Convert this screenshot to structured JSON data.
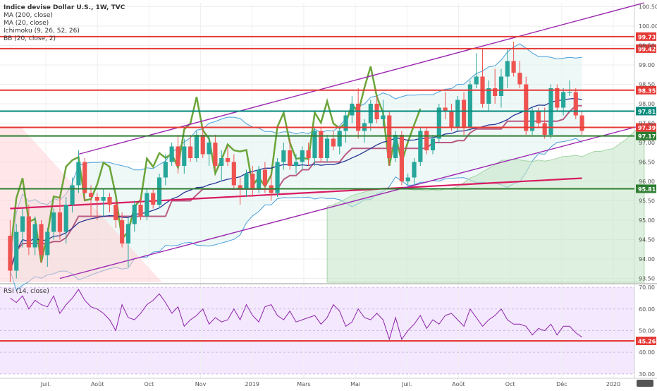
{
  "legend": {
    "title": "Indice devise Dollar U.S., 1W, TVC",
    "items": [
      "MA (200, close)",
      "MA (20, close)",
      "Ichimoku (9, 26, 52, 26)",
      "BB (20, close, 2)"
    ],
    "rsi": "RSI (14, close)"
  },
  "chart_data": [
    {
      "type": "candlestick",
      "y_axis_position": "right",
      "ylim": [
        93.4,
        100.6
      ],
      "y_ticks": [
        93.5,
        94.0,
        94.5,
        95.0,
        95.5,
        96.0,
        96.5,
        97.0,
        97.5,
        98.0,
        98.5,
        99.0,
        99.5,
        100.0,
        100.5
      ],
      "y_tick_labels": [
        "93.50",
        "94.00",
        "94.50",
        "95.00",
        "95.50",
        "96.00",
        "96.50",
        "97.00",
        "97.50",
        "98.00",
        "98.50",
        "99.00",
        "99.50",
        "100.00",
        "100.50"
      ],
      "x_labels": [
        "Juil.",
        "Août",
        "Oct",
        "Nov",
        "2019",
        "Mars",
        "Mai",
        "Juil.",
        "Août",
        "Oct",
        "Déc",
        "2020"
      ],
      "candles": [
        {
          "o": 94.6,
          "h": 95.0,
          "l": 93.4,
          "c": 93.7
        },
        {
          "o": 93.7,
          "h": 94.9,
          "l": 93.5,
          "c": 94.7
        },
        {
          "o": 94.7,
          "h": 95.3,
          "l": 94.3,
          "c": 95.1
        },
        {
          "o": 95.1,
          "h": 95.4,
          "l": 94.1,
          "c": 94.3
        },
        {
          "o": 94.3,
          "h": 95.1,
          "l": 94.1,
          "c": 94.9
        },
        {
          "o": 94.9,
          "h": 95.0,
          "l": 93.9,
          "c": 94.1
        },
        {
          "o": 94.1,
          "h": 94.8,
          "l": 93.8,
          "c": 94.7
        },
        {
          "o": 94.7,
          "h": 95.3,
          "l": 94.5,
          "c": 95.2
        },
        {
          "o": 95.2,
          "h": 95.6,
          "l": 94.5,
          "c": 94.7
        },
        {
          "o": 94.7,
          "h": 95.6,
          "l": 94.4,
          "c": 95.4
        },
        {
          "o": 95.4,
          "h": 96.1,
          "l": 95.2,
          "c": 95.9
        },
        {
          "o": 95.9,
          "h": 96.8,
          "l": 95.7,
          "c": 96.5
        },
        {
          "o": 96.5,
          "h": 96.6,
          "l": 95.5,
          "c": 95.7
        },
        {
          "o": 95.7,
          "h": 95.9,
          "l": 95.1,
          "c": 95.6
        },
        {
          "o": 95.6,
          "h": 95.7,
          "l": 95.0,
          "c": 95.5
        },
        {
          "o": 95.5,
          "h": 95.8,
          "l": 95.1,
          "c": 95.6
        },
        {
          "o": 95.6,
          "h": 95.7,
          "l": 95.2,
          "c": 95.4
        },
        {
          "o": 95.4,
          "h": 95.5,
          "l": 94.8,
          "c": 95.0
        },
        {
          "o": 95.0,
          "h": 95.2,
          "l": 94.3,
          "c": 94.4
        },
        {
          "o": 94.4,
          "h": 95.1,
          "l": 93.8,
          "c": 94.9
        },
        {
          "o": 94.9,
          "h": 95.5,
          "l": 94.7,
          "c": 95.4
        },
        {
          "o": 95.4,
          "h": 95.6,
          "l": 95.0,
          "c": 95.1
        },
        {
          "o": 95.1,
          "h": 95.8,
          "l": 95.0,
          "c": 95.7
        },
        {
          "o": 95.7,
          "h": 95.8,
          "l": 95.3,
          "c": 95.4
        },
        {
          "o": 95.4,
          "h": 96.2,
          "l": 95.3,
          "c": 96.1
        },
        {
          "o": 96.1,
          "h": 96.7,
          "l": 95.9,
          "c": 96.5
        },
        {
          "o": 96.5,
          "h": 97.0,
          "l": 96.4,
          "c": 96.9
        },
        {
          "o": 96.9,
          "h": 97.2,
          "l": 96.2,
          "c": 96.4
        },
        {
          "o": 96.4,
          "h": 97.1,
          "l": 96.2,
          "c": 96.9
        },
        {
          "o": 96.9,
          "h": 97.2,
          "l": 96.5,
          "c": 96.6
        },
        {
          "o": 96.6,
          "h": 97.3,
          "l": 96.5,
          "c": 97.2
        },
        {
          "o": 97.2,
          "h": 97.4,
          "l": 96.6,
          "c": 96.7
        },
        {
          "o": 96.7,
          "h": 97.2,
          "l": 96.4,
          "c": 97.0
        },
        {
          "o": 97.0,
          "h": 97.2,
          "l": 96.3,
          "c": 96.4
        },
        {
          "o": 96.4,
          "h": 96.8,
          "l": 96.0,
          "c": 96.6
        },
        {
          "o": 96.6,
          "h": 96.9,
          "l": 96.4,
          "c": 96.5
        },
        {
          "o": 96.5,
          "h": 96.7,
          "l": 95.8,
          "c": 95.9
        },
        {
          "o": 95.9,
          "h": 96.1,
          "l": 95.4,
          "c": 95.8
        },
        {
          "o": 95.8,
          "h": 96.3,
          "l": 95.6,
          "c": 96.2
        },
        {
          "o": 96.2,
          "h": 96.4,
          "l": 95.6,
          "c": 95.8
        },
        {
          "o": 95.8,
          "h": 96.4,
          "l": 95.7,
          "c": 96.3
        },
        {
          "o": 96.3,
          "h": 96.5,
          "l": 95.7,
          "c": 95.9
        },
        {
          "o": 95.9,
          "h": 96.2,
          "l": 95.5,
          "c": 95.7
        },
        {
          "o": 95.7,
          "h": 96.6,
          "l": 95.6,
          "c": 96.5
        },
        {
          "o": 96.5,
          "h": 97.0,
          "l": 96.3,
          "c": 96.8
        },
        {
          "o": 96.8,
          "h": 97.1,
          "l": 96.3,
          "c": 96.4
        },
        {
          "o": 96.4,
          "h": 96.7,
          "l": 96.2,
          "c": 96.5
        },
        {
          "o": 96.5,
          "h": 96.9,
          "l": 96.3,
          "c": 96.8
        },
        {
          "o": 96.8,
          "h": 97.0,
          "l": 96.4,
          "c": 96.6
        },
        {
          "o": 96.6,
          "h": 97.4,
          "l": 96.4,
          "c": 97.3
        },
        {
          "o": 97.3,
          "h": 97.4,
          "l": 96.5,
          "c": 96.6
        },
        {
          "o": 96.6,
          "h": 97.2,
          "l": 96.5,
          "c": 97.1
        },
        {
          "o": 97.1,
          "h": 97.3,
          "l": 96.8,
          "c": 96.9
        },
        {
          "o": 96.9,
          "h": 97.4,
          "l": 96.7,
          "c": 97.3
        },
        {
          "o": 97.3,
          "h": 97.8,
          "l": 97.0,
          "c": 97.7
        },
        {
          "o": 97.7,
          "h": 98.2,
          "l": 97.5,
          "c": 98.0
        },
        {
          "o": 98.0,
          "h": 98.4,
          "l": 97.1,
          "c": 97.3
        },
        {
          "o": 97.3,
          "h": 97.6,
          "l": 97.0,
          "c": 97.5
        },
        {
          "o": 97.5,
          "h": 98.1,
          "l": 97.3,
          "c": 98.0
        },
        {
          "o": 98.0,
          "h": 98.2,
          "l": 97.5,
          "c": 97.6
        },
        {
          "o": 97.6,
          "h": 98.1,
          "l": 97.4,
          "c": 97.7
        },
        {
          "o": 97.7,
          "h": 97.8,
          "l": 96.4,
          "c": 96.6
        },
        {
          "o": 96.6,
          "h": 97.3,
          "l": 96.5,
          "c": 97.2
        },
        {
          "o": 97.2,
          "h": 97.3,
          "l": 95.9,
          "c": 96.0
        },
        {
          "o": 96.0,
          "h": 96.2,
          "l": 95.9,
          "c": 96.1
        },
        {
          "o": 96.1,
          "h": 96.6,
          "l": 95.9,
          "c": 96.5
        },
        {
          "o": 96.5,
          "h": 97.4,
          "l": 96.4,
          "c": 97.3
        },
        {
          "o": 97.3,
          "h": 97.4,
          "l": 96.7,
          "c": 96.8
        },
        {
          "o": 96.8,
          "h": 97.2,
          "l": 96.7,
          "c": 97.1
        },
        {
          "o": 97.1,
          "h": 98.0,
          "l": 97.0,
          "c": 97.9
        },
        {
          "o": 97.9,
          "h": 98.3,
          "l": 97.6,
          "c": 97.8
        },
        {
          "o": 97.8,
          "h": 98.0,
          "l": 97.3,
          "c": 97.4
        },
        {
          "o": 97.4,
          "h": 98.2,
          "l": 97.3,
          "c": 98.1
        },
        {
          "o": 98.1,
          "h": 98.3,
          "l": 97.2,
          "c": 97.4
        },
        {
          "o": 97.4,
          "h": 98.6,
          "l": 97.3,
          "c": 98.5
        },
        {
          "o": 98.5,
          "h": 99.3,
          "l": 98.4,
          "c": 98.7
        },
        {
          "o": 98.7,
          "h": 99.4,
          "l": 97.9,
          "c": 98.0
        },
        {
          "o": 98.0,
          "h": 98.6,
          "l": 97.8,
          "c": 98.4
        },
        {
          "o": 98.4,
          "h": 98.9,
          "l": 98.0,
          "c": 98.2
        },
        {
          "o": 98.2,
          "h": 98.9,
          "l": 97.9,
          "c": 98.7
        },
        {
          "o": 98.7,
          "h": 99.4,
          "l": 98.4,
          "c": 99.1
        },
        {
          "o": 99.1,
          "h": 99.6,
          "l": 98.7,
          "c": 98.8
        },
        {
          "o": 98.8,
          "h": 99.1,
          "l": 98.4,
          "c": 98.5
        },
        {
          "o": 98.5,
          "h": 98.7,
          "l": 97.2,
          "c": 97.3
        },
        {
          "o": 97.3,
          "h": 97.9,
          "l": 97.2,
          "c": 97.8
        },
        {
          "o": 97.8,
          "h": 97.9,
          "l": 97.4,
          "c": 97.5
        },
        {
          "o": 97.5,
          "h": 97.9,
          "l": 97.1,
          "c": 97.2
        },
        {
          "o": 97.2,
          "h": 98.5,
          "l": 97.1,
          "c": 98.4
        },
        {
          "o": 98.4,
          "h": 98.5,
          "l": 97.8,
          "c": 97.9
        },
        {
          "o": 97.9,
          "h": 98.4,
          "l": 97.7,
          "c": 98.3
        },
        {
          "o": 98.3,
          "h": 98.6,
          "l": 98.2,
          "c": 98.3
        },
        {
          "o": 98.3,
          "h": 98.4,
          "l": 97.6,
          "c": 97.7
        },
        {
          "o": 97.7,
          "h": 97.8,
          "l": 97.2,
          "c": 97.3
        }
      ],
      "horizontal_levels": [
        {
          "value": 99.73,
          "label": "99.73",
          "color": "#e53935"
        },
        {
          "value": 99.42,
          "label": "99.42",
          "color": "#e53935"
        },
        {
          "value": 98.35,
          "label": "98.35",
          "color": "#e53935"
        },
        {
          "value": 97.81,
          "label": "97.81",
          "color": "#00897b"
        },
        {
          "value": 97.39,
          "label": "97.39",
          "color": "#e53935"
        },
        {
          "value": 97.17,
          "label": "97.17",
          "color": "#2e7d32"
        },
        {
          "value": 95.81,
          "label": "95.81",
          "color": "#2e7d32"
        }
      ],
      "trend_lines": [
        {
          "x0": 11,
          "y0": 96.7,
          "x1": 102,
          "y1": 100.6,
          "color": "#9c27b0"
        },
        {
          "x0": 8,
          "y0": 93.5,
          "x1": 103,
          "y1": 97.5,
          "color": "#9c27b0"
        }
      ]
    },
    {
      "type": "line",
      "name": "RSI (14, close)",
      "ylim": [
        28,
        71
      ],
      "y_ticks": [
        30,
        40,
        50,
        60,
        70
      ],
      "y_tick_labels": [
        "30.00",
        "40.00",
        "50.00",
        "60.00",
        "70.00"
      ],
      "level": {
        "value": 45.26,
        "label": "45.26",
        "color": "#e53935"
      },
      "values": [
        65,
        63,
        66,
        60,
        64,
        62,
        61,
        66,
        58,
        62,
        65,
        69,
        64,
        61,
        60,
        58,
        55,
        50,
        62,
        56,
        55,
        58,
        62,
        64,
        67,
        63,
        58,
        61,
        52,
        55,
        57,
        60,
        53,
        56,
        54,
        55,
        60,
        55,
        62,
        57,
        54,
        61,
        62,
        57,
        55,
        59,
        54,
        55,
        56,
        57,
        53,
        56,
        62,
        59,
        52,
        54,
        60,
        56,
        55,
        58,
        55,
        46,
        56,
        46,
        50,
        53,
        57,
        51,
        55,
        53,
        57,
        58,
        55,
        52,
        60,
        56,
        52,
        55,
        57,
        60,
        55,
        53,
        53,
        52,
        48,
        51,
        50,
        53,
        48,
        52,
        52,
        49,
        47
      ]
    }
  ]
}
